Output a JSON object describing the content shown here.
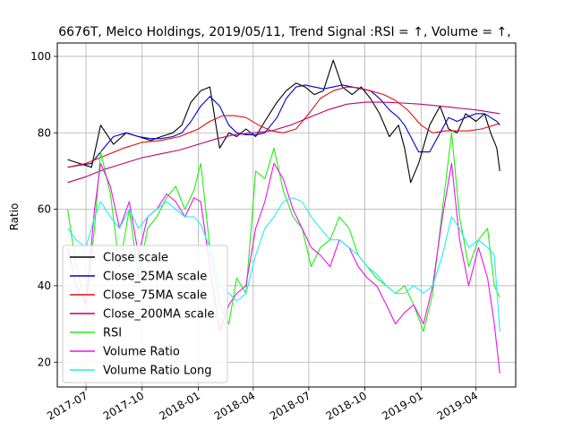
{
  "chart_data": {
    "type": "line",
    "title": "6676T, Melco Holdings, 2019/05/11, Trend Signal :RSI = ↑, Volume = ↑,",
    "xlabel": "",
    "ylabel": "Ratio",
    "x_range": [
      "2017-05-15",
      "2019-06-05"
    ],
    "ylim": [
      13.5,
      103.5
    ],
    "grid": true,
    "legend_position": "lower-left",
    "x_ticks": [
      "2017-07",
      "2017-10",
      "2018-01",
      "2018-04",
      "2018-07",
      "2018-10",
      "2019-01",
      "2019-04"
    ],
    "y_ticks": [
      20,
      40,
      60,
      80,
      100
    ],
    "series": [
      {
        "name": "Close scale",
        "color": "#000000",
        "x": [
          "2017-06-01",
          "2017-06-20",
          "2017-07-10",
          "2017-07-25",
          "2017-08-15",
          "2017-09-05",
          "2017-09-25",
          "2017-10-15",
          "2017-11-01",
          "2017-11-20",
          "2017-12-05",
          "2017-12-20",
          "2018-01-05",
          "2018-01-20",
          "2018-02-05",
          "2018-02-20",
          "2018-03-05",
          "2018-03-20",
          "2018-04-05",
          "2018-04-20",
          "2018-05-10",
          "2018-05-25",
          "2018-06-10",
          "2018-06-25",
          "2018-07-10",
          "2018-07-25",
          "2018-08-10",
          "2018-08-25",
          "2018-09-10",
          "2018-09-25",
          "2018-10-10",
          "2018-10-25",
          "2018-11-10",
          "2018-11-25",
          "2018-12-05",
          "2018-12-15",
          "2018-12-28",
          "2019-01-15",
          "2019-02-01",
          "2019-02-15",
          "2019-03-01",
          "2019-03-15",
          "2019-04-01",
          "2019-04-15",
          "2019-04-25",
          "2019-05-05",
          "2019-05-10"
        ],
        "values": [
          73,
          72,
          71,
          82,
          77,
          80,
          79,
          78,
          79,
          80,
          82,
          88,
          91,
          92,
          76,
          80,
          79,
          81,
          79,
          83,
          88,
          91,
          93,
          92,
          90,
          91,
          99,
          92,
          90,
          92,
          89,
          85,
          79,
          82,
          76,
          67,
          72,
          82,
          87,
          81,
          80,
          85,
          83,
          85,
          80,
          76,
          70
        ]
      },
      {
        "name": "Close_25MA scale",
        "color": "#0000cc",
        "x": [
          "2017-06-01",
          "2017-06-20",
          "2017-07-10",
          "2017-07-25",
          "2017-08-15",
          "2017-09-05",
          "2017-09-25",
          "2017-10-15",
          "2017-11-01",
          "2017-11-20",
          "2017-12-05",
          "2017-12-20",
          "2018-01-05",
          "2018-01-20",
          "2018-02-05",
          "2018-02-20",
          "2018-03-05",
          "2018-03-20",
          "2018-04-05",
          "2018-04-20",
          "2018-05-10",
          "2018-05-25",
          "2018-06-10",
          "2018-06-25",
          "2018-07-10",
          "2018-07-25",
          "2018-08-10",
          "2018-08-25",
          "2018-09-10",
          "2018-09-25",
          "2018-10-10",
          "2018-10-25",
          "2018-11-10",
          "2018-11-25",
          "2018-12-05",
          "2018-12-15",
          "2018-12-28",
          "2019-01-15",
          "2019-02-01",
          "2019-02-15",
          "2019-03-01",
          "2019-03-15",
          "2019-04-01",
          "2019-04-15",
          "2019-04-25",
          "2019-05-05",
          "2019-05-10"
        ],
        "values": [
          71,
          71.5,
          72,
          75,
          79,
          80,
          79,
          78.5,
          78.5,
          79,
          80,
          83,
          87,
          89.5,
          87,
          82,
          80,
          79.5,
          79.5,
          80,
          84,
          89,
          92,
          92.5,
          92,
          91.5,
          92,
          92.5,
          92,
          91.5,
          91,
          89,
          86,
          84,
          82,
          79,
          75,
          75,
          80,
          84,
          83,
          84,
          85,
          85,
          84,
          83,
          82
        ]
      },
      {
        "name": "Close_75MA scale",
        "color": "#dd1111",
        "x": [
          "2017-06-01",
          "2017-07-01",
          "2017-08-01",
          "2017-09-01",
          "2017-10-01",
          "2017-11-01",
          "2017-12-01",
          "2018-01-01",
          "2018-01-20",
          "2018-02-10",
          "2018-03-01",
          "2018-03-20",
          "2018-04-10",
          "2018-05-01",
          "2018-05-20",
          "2018-06-10",
          "2018-07-01",
          "2018-07-20",
          "2018-08-10",
          "2018-09-01",
          "2018-09-20",
          "2018-10-10",
          "2018-11-01",
          "2018-11-20",
          "2018-12-10",
          "2019-01-01",
          "2019-01-20",
          "2019-02-10",
          "2019-03-01",
          "2019-03-20",
          "2019-04-10",
          "2019-05-01",
          "2019-05-10"
        ],
        "values": [
          71,
          72,
          74,
          76,
          77.5,
          78,
          79,
          81,
          83,
          84.5,
          84.5,
          84,
          82,
          80.5,
          80,
          81,
          85,
          89,
          91,
          92,
          91.8,
          91,
          90,
          88.5,
          86,
          82,
          80,
          80.5,
          80.5,
          80.5,
          81,
          82,
          82.5
        ]
      },
      {
        "name": "Close_200MA scale",
        "color": "#bb0077",
        "x": [
          "2017-06-01",
          "2017-07-01",
          "2017-08-01",
          "2017-09-01",
          "2017-10-01",
          "2017-11-01",
          "2017-12-01",
          "2018-01-01",
          "2018-02-01",
          "2018-03-01",
          "2018-04-01",
          "2018-05-01",
          "2018-06-01",
          "2018-07-01",
          "2018-08-01",
          "2018-09-01",
          "2018-10-01",
          "2018-11-01",
          "2018-12-01",
          "2019-01-01",
          "2019-02-01",
          "2019-03-01",
          "2019-04-01",
          "2019-05-10"
        ],
        "values": [
          67,
          68.5,
          70.5,
          72,
          73.5,
          74.5,
          75.5,
          77,
          78.5,
          79.5,
          80,
          80.5,
          82,
          84,
          86,
          87.5,
          88,
          88,
          87.8,
          87.5,
          87,
          86.5,
          86,
          85
        ]
      },
      {
        "name": "RSI",
        "color": "#22ee11",
        "x": [
          "2017-06-01",
          "2017-06-15",
          "2017-07-01",
          "2017-07-15",
          "2017-07-25",
          "2017-08-10",
          "2017-08-25",
          "2017-09-10",
          "2017-09-25",
          "2017-10-10",
          "2017-10-25",
          "2017-11-10",
          "2017-11-25",
          "2017-12-10",
          "2017-12-25",
          "2018-01-05",
          "2018-01-20",
          "2018-02-05",
          "2018-02-20",
          "2018-03-05",
          "2018-03-20",
          "2018-04-05",
          "2018-04-20",
          "2018-05-05",
          "2018-05-20",
          "2018-06-05",
          "2018-06-20",
          "2018-07-05",
          "2018-07-20",
          "2018-08-05",
          "2018-08-20",
          "2018-09-05",
          "2018-09-20",
          "2018-10-05",
          "2018-10-20",
          "2018-11-05",
          "2018-11-20",
          "2018-12-05",
          "2018-12-20",
          "2019-01-05",
          "2019-01-20",
          "2019-02-05",
          "2019-02-20",
          "2019-03-05",
          "2019-03-20",
          "2019-04-05",
          "2019-04-20",
          "2019-05-01",
          "2019-05-10"
        ],
        "values": [
          60,
          45,
          35,
          55,
          75,
          64,
          45,
          60,
          42,
          55,
          58,
          63,
          66,
          60,
          65,
          72,
          50,
          35,
          30,
          42,
          38,
          70,
          68,
          76,
          65,
          58,
          55,
          45,
          50,
          52,
          58,
          55,
          48,
          45,
          42,
          40,
          38,
          40,
          35,
          28,
          38,
          60,
          80,
          58,
          45,
          52,
          55,
          40,
          37
        ]
      },
      {
        "name": "Volume Ratio",
        "color": "#ee11ee",
        "x": [
          "2017-06-01",
          "2017-06-15",
          "2017-07-01",
          "2017-07-15",
          "2017-07-25",
          "2017-08-10",
          "2017-08-25",
          "2017-09-10",
          "2017-09-25",
          "2017-10-10",
          "2017-10-25",
          "2017-11-10",
          "2017-11-25",
          "2017-12-10",
          "2017-12-25",
          "2018-01-05",
          "2018-01-20",
          "2018-02-05",
          "2018-02-20",
          "2018-03-05",
          "2018-03-20",
          "2018-04-05",
          "2018-04-20",
          "2018-05-05",
          "2018-05-20",
          "2018-06-05",
          "2018-06-20",
          "2018-07-05",
          "2018-07-20",
          "2018-08-05",
          "2018-08-20",
          "2018-09-05",
          "2018-09-20",
          "2018-10-05",
          "2018-10-20",
          "2018-11-05",
          "2018-11-20",
          "2018-12-05",
          "2018-12-20",
          "2019-01-05",
          "2019-01-20",
          "2019-02-05",
          "2019-02-20",
          "2019-03-05",
          "2019-03-20",
          "2019-04-05",
          "2019-04-20",
          "2019-05-01",
          "2019-05-10"
        ],
        "values": [
          50,
          40,
          35,
          60,
          72,
          66,
          55,
          62,
          48,
          58,
          60,
          64,
          62,
          58,
          63,
          62,
          45,
          28,
          35,
          38,
          40,
          55,
          62,
          72,
          68,
          60,
          55,
          50,
          48,
          45,
          52,
          50,
          45,
          42,
          40,
          35,
          30,
          33,
          35,
          30,
          40,
          58,
          72,
          52,
          40,
          50,
          42,
          30,
          17
        ]
      },
      {
        "name": "Volume Ratio Long",
        "color": "#22eeee",
        "x": [
          "2017-06-01",
          "2017-06-15",
          "2017-07-01",
          "2017-07-15",
          "2017-07-25",
          "2017-08-10",
          "2017-08-25",
          "2017-09-10",
          "2017-09-25",
          "2017-10-10",
          "2017-10-25",
          "2017-11-10",
          "2017-11-25",
          "2017-12-10",
          "2017-12-25",
          "2018-01-05",
          "2018-01-20",
          "2018-02-05",
          "2018-02-20",
          "2018-03-05",
          "2018-03-20",
          "2018-04-05",
          "2018-04-20",
          "2018-05-05",
          "2018-05-20",
          "2018-06-05",
          "2018-06-20",
          "2018-07-05",
          "2018-07-20",
          "2018-08-05",
          "2018-08-20",
          "2018-09-05",
          "2018-09-20",
          "2018-10-05",
          "2018-10-20",
          "2018-11-05",
          "2018-11-20",
          "2018-12-05",
          "2018-12-20",
          "2019-01-05",
          "2019-01-20",
          "2019-02-05",
          "2019-02-20",
          "2019-03-05",
          "2019-03-20",
          "2019-04-05",
          "2019-04-20",
          "2019-05-01",
          "2019-05-10"
        ],
        "values": [
          55,
          52,
          50,
          58,
          62,
          58,
          55,
          60,
          55,
          58,
          60,
          62,
          60,
          58,
          58,
          56,
          50,
          40,
          38,
          36,
          38,
          48,
          55,
          58,
          62,
          63,
          62,
          58,
          55,
          52,
          52,
          50,
          48,
          45,
          43,
          40,
          38,
          38,
          40,
          38,
          40,
          48,
          58,
          55,
          50,
          52,
          50,
          48,
          28
        ]
      }
    ]
  }
}
